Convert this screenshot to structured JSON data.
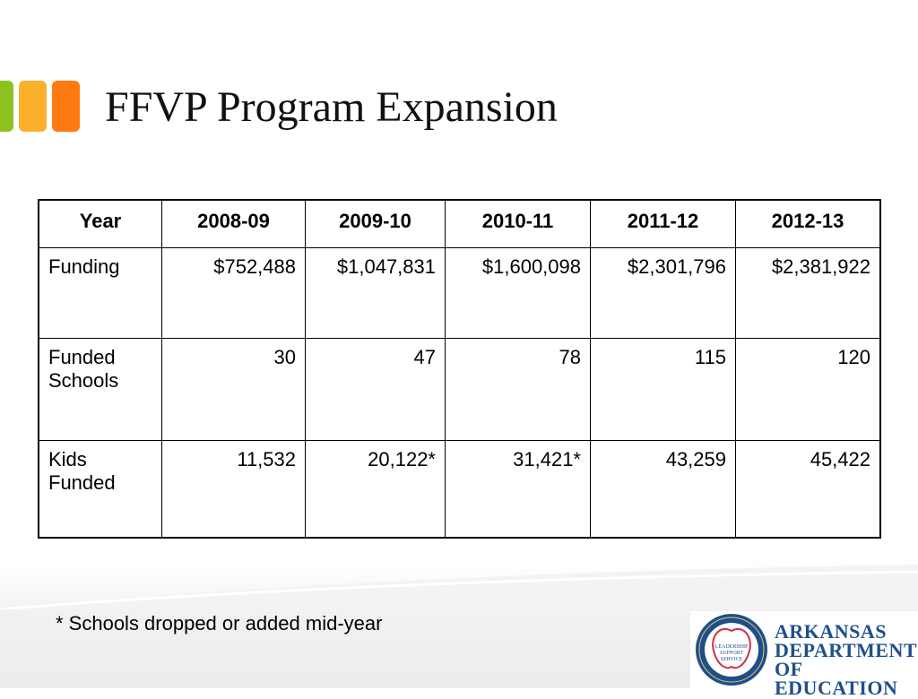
{
  "accent_colors": {
    "green": "#8dc11e",
    "yellow": "#fbb02d",
    "orange": "#ff7a10"
  },
  "title": "FFVP Program Expansion",
  "table": {
    "headers": [
      "Year",
      "2008-09",
      "2009-10",
      "2010-11",
      "2011-12",
      "2012-13"
    ],
    "rows": [
      {
        "label": "Funding",
        "values": [
          "$752,488",
          "$1,047,831",
          "$1,600,098",
          "$2,301,796",
          "$2,381,922"
        ]
      },
      {
        "label": "Funded Schools",
        "values": [
          "30",
          "47",
          "78",
          "115",
          "120"
        ]
      },
      {
        "label": "Kids Funded",
        "values": [
          "11,532",
          "20,122*",
          "31,421*",
          "43,259",
          "45,422"
        ]
      }
    ]
  },
  "footnote": "* Schools dropped or added mid-year",
  "logo": {
    "seal_text": "ARKANSAS DEPARTMENT OF EDUCATION",
    "seal_inner": "LEADERSHIP SUPPORT SERVICE",
    "line1": "ARKANSAS",
    "line2": "DEPARTMENT",
    "line3": "OF EDUCATION"
  }
}
